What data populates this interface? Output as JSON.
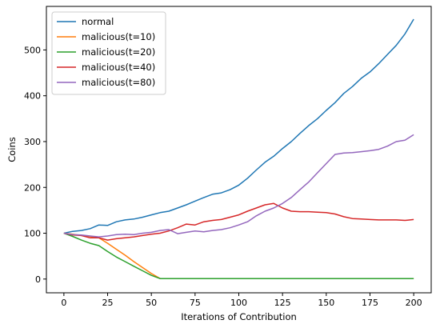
{
  "chart_data": {
    "type": "line",
    "title": "",
    "xlabel": "Iterations of Contribution",
    "ylabel": "Coins",
    "xlim": [
      -10,
      210
    ],
    "ylim": [
      -30,
      595
    ],
    "xticks": [
      0,
      25,
      50,
      75,
      100,
      125,
      150,
      175,
      200
    ],
    "yticks": [
      0,
      100,
      200,
      300,
      400,
      500
    ],
    "grid": false,
    "legend_position": "top-left",
    "series": [
      {
        "name": "normal",
        "color": "#1f77b4",
        "x": [
          0,
          5,
          10,
          15,
          20,
          25,
          30,
          35,
          40,
          45,
          50,
          55,
          60,
          65,
          70,
          75,
          80,
          85,
          90,
          95,
          100,
          105,
          110,
          115,
          120,
          125,
          130,
          135,
          140,
          145,
          150,
          155,
          160,
          165,
          170,
          175,
          180,
          185,
          190,
          195,
          200
        ],
        "y": [
          100,
          104,
          106,
          110,
          118,
          117,
          125,
          129,
          131,
          135,
          140,
          145,
          148,
          155,
          162,
          170,
          178,
          185,
          188,
          195,
          205,
          220,
          238,
          255,
          268,
          285,
          300,
          318,
          335,
          350,
          368,
          385,
          405,
          420,
          438,
          452,
          470,
          490,
          510,
          535,
          567
        ]
      },
      {
        "name": "malicious(t=10)",
        "color": "#ff7f0e",
        "x": [
          0,
          5,
          10,
          15,
          20,
          25,
          30,
          35,
          40,
          45,
          50,
          55,
          60,
          80,
          100,
          120,
          140,
          160,
          180,
          200
        ],
        "y": [
          100,
          98,
          95,
          93,
          90,
          78,
          65,
          52,
          38,
          25,
          12,
          1,
          1,
          1,
          1,
          1,
          1,
          1,
          1,
          1
        ]
      },
      {
        "name": "malicious(t=20)",
        "color": "#2ca02c",
        "x": [
          0,
          5,
          10,
          15,
          20,
          25,
          30,
          35,
          40,
          45,
          50,
          55,
          60,
          80,
          100,
          120,
          140,
          160,
          180,
          200
        ],
        "y": [
          100,
          93,
          85,
          78,
          73,
          60,
          48,
          38,
          28,
          18,
          8,
          1,
          1,
          1,
          1,
          1,
          1,
          1,
          1,
          1
        ]
      },
      {
        "name": "malicious(t=40)",
        "color": "#d62728",
        "x": [
          0,
          5,
          10,
          15,
          20,
          25,
          30,
          35,
          40,
          45,
          50,
          55,
          60,
          65,
          70,
          75,
          80,
          85,
          90,
          95,
          100,
          105,
          110,
          115,
          120,
          125,
          130,
          135,
          140,
          145,
          150,
          155,
          160,
          165,
          170,
          175,
          180,
          185,
          190,
          195,
          200
        ],
        "y": [
          100,
          96,
          95,
          90,
          90,
          85,
          88,
          90,
          92,
          95,
          98,
          100,
          105,
          112,
          120,
          118,
          125,
          128,
          130,
          135,
          140,
          148,
          155,
          162,
          165,
          155,
          148,
          147,
          147,
          146,
          145,
          142,
          136,
          132,
          131,
          130,
          129,
          129,
          129,
          128,
          130
        ]
      },
      {
        "name": "malicious(t=80)",
        "color": "#9467bd",
        "x": [
          0,
          5,
          10,
          15,
          20,
          25,
          30,
          35,
          40,
          45,
          50,
          55,
          60,
          65,
          70,
          75,
          80,
          85,
          90,
          95,
          100,
          105,
          110,
          115,
          120,
          125,
          130,
          135,
          140,
          145,
          150,
          155,
          160,
          165,
          170,
          175,
          180,
          185,
          190,
          195,
          200
        ],
        "y": [
          100,
          97,
          96,
          94,
          92,
          94,
          97,
          98,
          97,
          100,
          102,
          106,
          108,
          99,
          102,
          105,
          103,
          106,
          108,
          112,
          118,
          125,
          138,
          148,
          155,
          165,
          178,
          195,
          212,
          232,
          252,
          272,
          275,
          276,
          278,
          280,
          283,
          290,
          300,
          303,
          315
        ]
      }
    ]
  }
}
